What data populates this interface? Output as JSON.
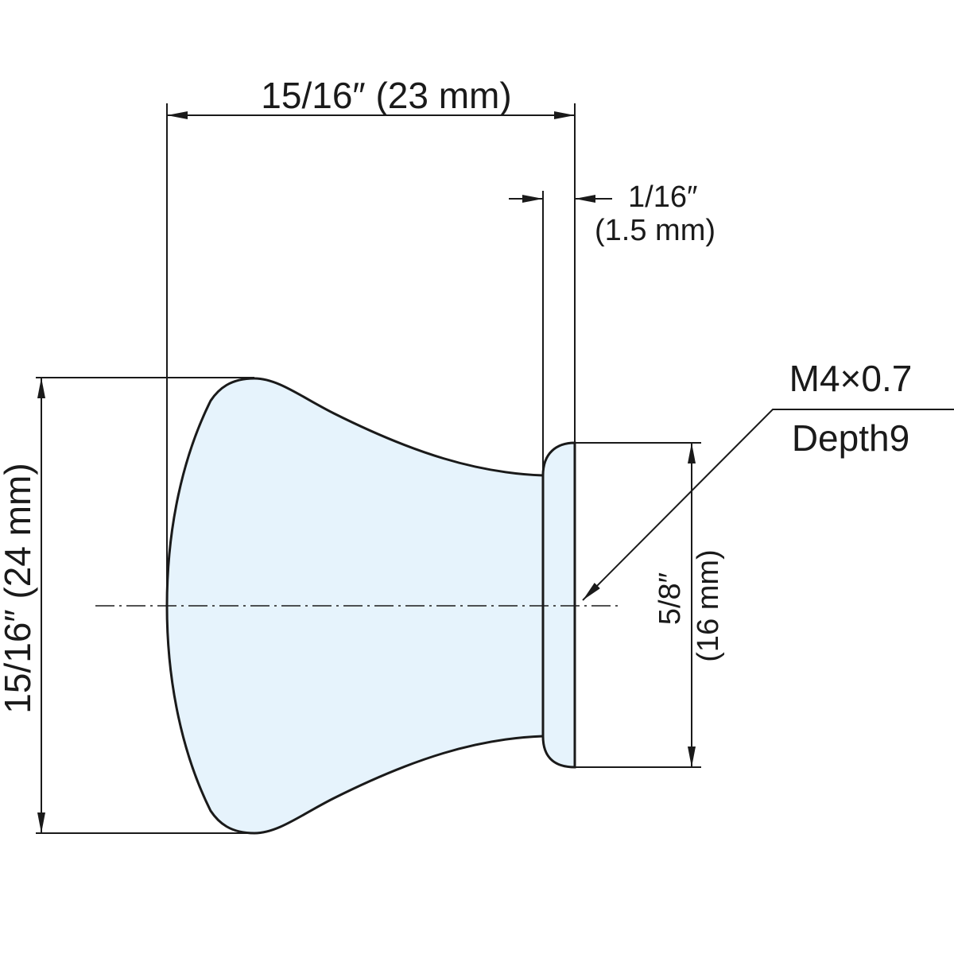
{
  "dimensions": {
    "overall_width": "15/16″ (23 mm)",
    "base_thickness": [
      "1/16″",
      "(1.5 mm)"
    ],
    "overall_height": "15/16″ (24 mm)",
    "base_diameter": [
      "5/8″",
      "(16 mm)"
    ]
  },
  "thread": [
    "M4×0.7",
    "Depth9"
  ]
}
